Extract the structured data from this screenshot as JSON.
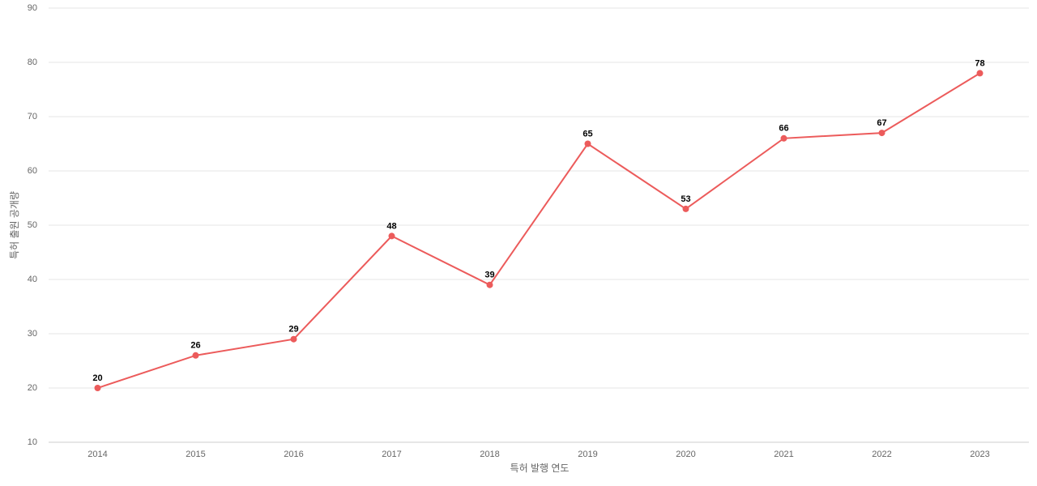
{
  "chart_data": {
    "type": "line",
    "x_label": "특허 발행 연도",
    "y_label": "특허 출원 공개량",
    "categories": [
      "2014",
      "2015",
      "2016",
      "2017",
      "2018",
      "2019",
      "2020",
      "2021",
      "2022",
      "2023"
    ],
    "series": [
      {
        "name": "특허 출원 공개량",
        "color": "#ec5b5b",
        "values": [
          20,
          26,
          29,
          48,
          39,
          65,
          53,
          66,
          67,
          78
        ]
      }
    ],
    "ylim": [
      10,
      90
    ],
    "yticks": [
      10,
      20,
      30,
      40,
      50,
      60,
      70,
      80,
      90
    ],
    "grid": true
  }
}
